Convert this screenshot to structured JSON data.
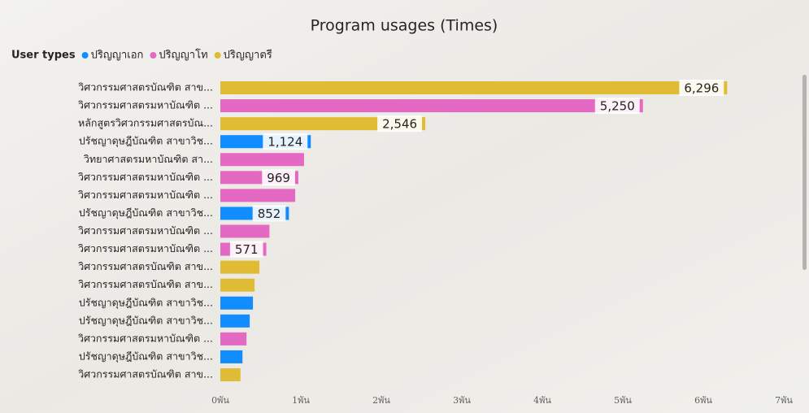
{
  "chart_data": {
    "type": "bar",
    "orientation": "horizontal",
    "title": "Program usages (Times)",
    "legend_title": "User types",
    "legend": "top-left",
    "categories": [
      "วิศวกรรมศาสตรบัณฑิต สาข...",
      "วิศวกรรมศาสตรมหาบัณฑิต ...",
      "หลักสูตรวิศวกรรมศาสตรบัณ...",
      "ปรัชญาดุษฎีบัณฑิต สาขาวิช...",
      "วิทยาศาสตรมหาบัณฑิต สา...",
      "วิศวกรรมศาสตรมหาบัณฑิต ...",
      "วิศวกรรมศาสตรมหาบัณฑิต ...",
      "ปรัชญาดุษฎีบัณฑิต สาขาวิช...",
      "วิศวกรรมศาสตรมหาบัณฑิต ...",
      "วิศวกรรมศาสตรมหาบัณฑิต ...",
      "วิศวกรรมศาสตรบัณฑิต สาข...",
      "วิศวกรรมศาสตรบัณฑิต สาข...",
      "ปรัชญาดุษฎีบัณฑิต สาขาวิช...",
      "ปรัชญาดุษฎีบัณฑิต สาขาวิช...",
      "วิศวกรรมศาสตรมหาบัณฑิต ...",
      "ปรัชญาดุษฎีบัณฑิต สาขาวิช...",
      "วิศวกรรมศาสตรบัณฑิต สาข..."
    ],
    "series": [
      {
        "name": "ปริญญาเอก",
        "color": "#118dff",
        "values": [
          null,
          null,
          null,
          1124,
          null,
          null,
          null,
          852,
          null,
          null,
          null,
          null,
          405,
          365,
          null,
          275,
          null
        ],
        "value_labels": [
          null,
          null,
          null,
          "1,124",
          null,
          null,
          null,
          "852",
          null,
          null,
          null,
          null,
          null,
          null,
          null,
          null,
          null
        ]
      },
      {
        "name": "ปริญญาโท",
        "color": "#e469c2",
        "values": [
          null,
          5250,
          null,
          null,
          1040,
          969,
          930,
          null,
          610,
          571,
          null,
          null,
          null,
          null,
          325,
          null,
          null
        ],
        "value_labels": [
          null,
          "5,250",
          null,
          null,
          null,
          "969",
          null,
          null,
          null,
          "571",
          null,
          null,
          null,
          null,
          null,
          null,
          null
        ]
      },
      {
        "name": "ปริญญาตรี",
        "color": "#e0bb34",
        "values": [
          6296,
          null,
          2546,
          null,
          null,
          null,
          null,
          null,
          null,
          null,
          485,
          425,
          null,
          null,
          null,
          null,
          250
        ],
        "value_labels": [
          "6,296",
          null,
          "2,546",
          null,
          null,
          null,
          null,
          null,
          null,
          null,
          null,
          null,
          null,
          null,
          null,
          null,
          null
        ]
      }
    ],
    "xlim": [
      0,
      7000
    ],
    "xticks": [
      {
        "value": 0,
        "label": "0พัน"
      },
      {
        "value": 1000,
        "label": "1พัน"
      },
      {
        "value": 2000,
        "label": "2พัน"
      },
      {
        "value": 3000,
        "label": "3พัน"
      },
      {
        "value": 4000,
        "label": "4พัน"
      },
      {
        "value": 5000,
        "label": "5พัน"
      },
      {
        "value": 6000,
        "label": "6พัน"
      },
      {
        "value": 7000,
        "label": "7พัน"
      }
    ]
  }
}
